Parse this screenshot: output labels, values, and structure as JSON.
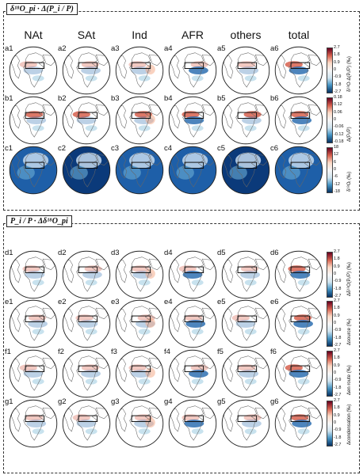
{
  "top_section": {
    "title": "δ¹⁸O_pi · Δ(P_i / P)",
    "columns": [
      "NAt",
      "SAt",
      "Ind",
      "AFR",
      "others",
      "total"
    ],
    "rows": [
      {
        "letter": "a",
        "colorbar_label": "δ¹⁸O·Δ(Pᵢ/P) (‰)",
        "ticks": [
          "2.7",
          "1.8",
          "0.9",
          "0",
          "-0.9",
          "-1.8",
          "-2.7"
        ],
        "style": "diverging"
      },
      {
        "letter": "b",
        "colorbar_label": "Δ(Pᵢ/P)",
        "ticks": [
          "0.18",
          "0.12",
          "0.06",
          "0",
          "-0.06",
          "-0.12",
          "-0.18"
        ],
        "style": "diverging"
      },
      {
        "letter": "c",
        "colorbar_label": "δ¹⁸Oᵢ (‰)",
        "ticks": [
          "18",
          "12",
          "6",
          "0",
          "-6",
          "-12",
          "-18"
        ],
        "style": "diverging"
      }
    ]
  },
  "bottom_section": {
    "title": "P_i / P · Δδ¹⁸O_pi",
    "rows": [
      {
        "letter": "d",
        "colorbar_label": "Δδ¹⁸O(Pᵢ/P) (‰)",
        "ticks": [
          "2.7",
          "1.8",
          "0.9",
          "0",
          "-0.9",
          "-1.8",
          "-2.7"
        ]
      },
      {
        "letter": "e",
        "colorbar_label": "Δsource (‰)",
        "ticks": [
          "2.7",
          "1.8",
          "0.9",
          "0",
          "-0.9",
          "-1.8",
          "-2.7"
        ]
      },
      {
        "letter": "f",
        "colorbar_label": "Δen route (‰)",
        "ticks": [
          "2.7",
          "1.8",
          "0.9",
          "0",
          "-0.9",
          "-1.8",
          "-2.7"
        ]
      },
      {
        "letter": "g",
        "colorbar_label": "Δcondensation (‰)",
        "ticks": [
          "2.7",
          "1.8",
          "0.9",
          "0",
          "-0.9",
          "-1.8",
          "-2.7"
        ]
      }
    ]
  },
  "colors": {
    "red": "#b2182b",
    "white": "#f7f7f7",
    "blue": "#2166ac",
    "deep_blue": "#08306b"
  }
}
